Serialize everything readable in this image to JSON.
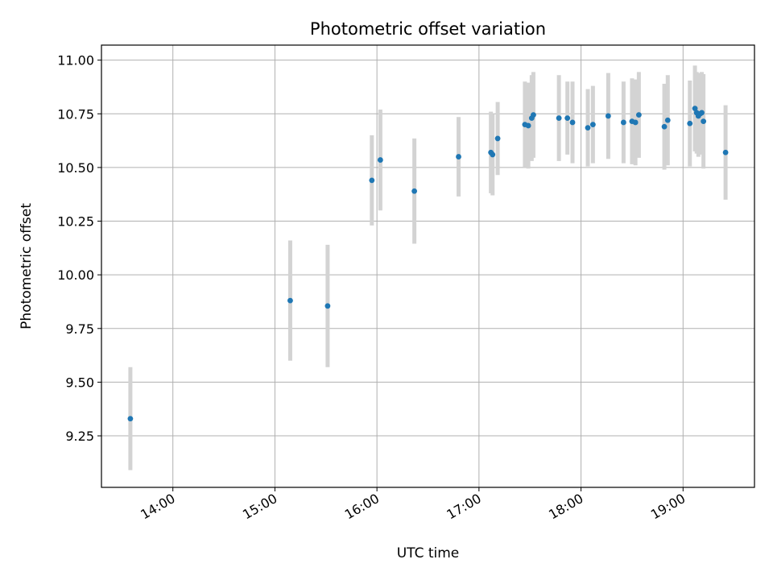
{
  "chart_data": {
    "type": "scatter",
    "title": "Photometric offset variation",
    "xlabel": "UTC time",
    "ylabel": "Photometric offset",
    "x_axis": {
      "unit": "UTC time (HH:MM)",
      "range": [
        "13:18",
        "19:42"
      ],
      "ticks": [
        "14:00",
        "15:00",
        "16:00",
        "17:00",
        "18:00",
        "19:00"
      ]
    },
    "y_axis": {
      "range": [
        9.01,
        11.07
      ],
      "ticks": [
        "9.25",
        "9.50",
        "9.75",
        "10.00",
        "10.25",
        "10.50",
        "10.75",
        "11.00"
      ]
    },
    "grid": true,
    "point_color": "#1f77b4",
    "errorbar_color": "#d3d3d3",
    "series": [
      {
        "points": [
          {
            "x": "13:35",
            "y": 9.33,
            "err": 0.24
          },
          {
            "x": "15:09",
            "y": 9.88,
            "err": 0.28
          },
          {
            "x": "15:31",
            "y": 9.855,
            "err": 0.285
          },
          {
            "x": "15:57",
            "y": 10.44,
            "err": 0.21
          },
          {
            "x": "16:02",
            "y": 10.535,
            "err": 0.235
          },
          {
            "x": "16:22",
            "y": 10.39,
            "err": 0.245
          },
          {
            "x": "16:48",
            "y": 10.55,
            "err": 0.185
          },
          {
            "x": "17:07",
            "y": 10.57,
            "err": 0.19
          },
          {
            "x": "17:08",
            "y": 10.56,
            "err": 0.19
          },
          {
            "x": "17:11",
            "y": 10.635,
            "err": 0.17
          },
          {
            "x": "17:27",
            "y": 10.7,
            "err": 0.2
          },
          {
            "x": "17:29",
            "y": 10.695,
            "err": 0.2
          },
          {
            "x": "17:31",
            "y": 10.73,
            "err": 0.2
          },
          {
            "x": "17:32",
            "y": 10.745,
            "err": 0.2
          },
          {
            "x": "17:47",
            "y": 10.73,
            "err": 0.2
          },
          {
            "x": "17:52",
            "y": 10.73,
            "err": 0.17
          },
          {
            "x": "17:55",
            "y": 10.71,
            "err": 0.19
          },
          {
            "x": "18:04",
            "y": 10.685,
            "err": 0.18
          },
          {
            "x": "18:07",
            "y": 10.7,
            "err": 0.18
          },
          {
            "x": "18:16",
            "y": 10.74,
            "err": 0.2
          },
          {
            "x": "18:25",
            "y": 10.71,
            "err": 0.19
          },
          {
            "x": "18:30",
            "y": 10.715,
            "err": 0.2
          },
          {
            "x": "18:32",
            "y": 10.71,
            "err": 0.2
          },
          {
            "x": "18:34",
            "y": 10.745,
            "err": 0.2
          },
          {
            "x": "18:49",
            "y": 10.69,
            "err": 0.2
          },
          {
            "x": "18:51",
            "y": 10.72,
            "err": 0.21
          },
          {
            "x": "19:04",
            "y": 10.705,
            "err": 0.2
          },
          {
            "x": "19:07",
            "y": 10.775,
            "err": 0.2
          },
          {
            "x": "19:08",
            "y": 10.755,
            "err": 0.19
          },
          {
            "x": "19:09",
            "y": 10.74,
            "err": 0.19
          },
          {
            "x": "19:10",
            "y": 10.75,
            "err": 0.19
          },
          {
            "x": "19:11",
            "y": 10.755,
            "err": 0.19
          },
          {
            "x": "19:12",
            "y": 10.715,
            "err": 0.22
          },
          {
            "x": "19:25",
            "y": 10.57,
            "err": 0.22
          }
        ]
      }
    ]
  }
}
